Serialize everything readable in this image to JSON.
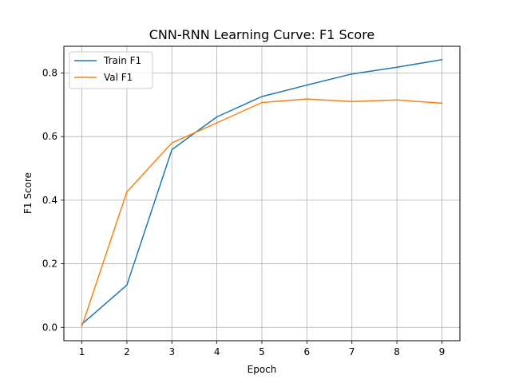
{
  "chart_data": {
    "type": "line",
    "title": "CNN-RNN Learning Curve: F1 Score",
    "xlabel": "Epoch",
    "ylabel": "F1 Score",
    "x": [
      1,
      2,
      3,
      4,
      5,
      6,
      7,
      8,
      9
    ],
    "xlim": [
      0.6,
      9.4
    ],
    "ylim": [
      -0.042,
      0.884
    ],
    "xticks": [
      1,
      2,
      3,
      4,
      5,
      6,
      7,
      8,
      9
    ],
    "yticks": [
      0.0,
      0.2,
      0.4,
      0.6,
      0.8
    ],
    "grid": true,
    "legend_position": "upper-left",
    "series": [
      {
        "name": "Train F1",
        "color": "#1f77b4",
        "values": [
          0.01,
          0.133,
          0.559,
          0.662,
          0.726,
          0.762,
          0.797,
          0.818,
          0.842
        ]
      },
      {
        "name": "Val F1",
        "color": "#ff7f0e",
        "values": [
          0.003,
          0.426,
          0.58,
          0.643,
          0.707,
          0.718,
          0.71,
          0.715,
          0.705
        ]
      }
    ]
  }
}
